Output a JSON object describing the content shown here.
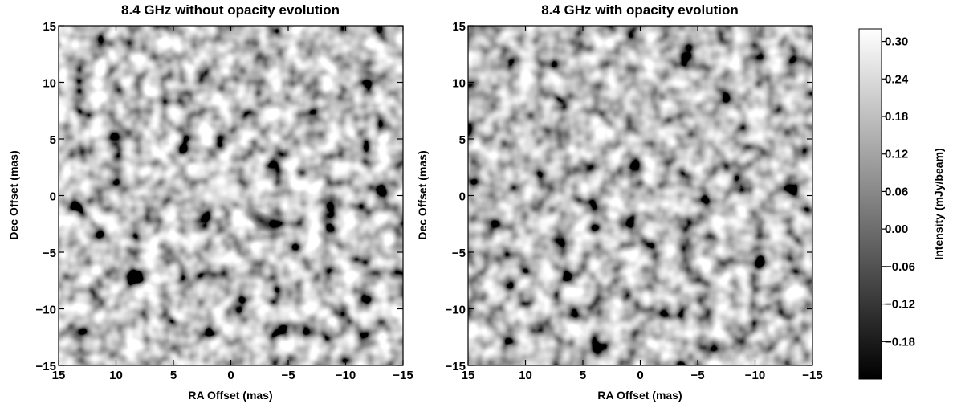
{
  "chart_data": [
    {
      "type": "heatmap",
      "title": "8.4 GHz without opacity evolution",
      "xlabel": "RA Offset (mas)",
      "ylabel": "Dec Offset (mas)",
      "xlim": [
        15,
        -15
      ],
      "ylim": [
        -15,
        15
      ],
      "xticks": [
        "15",
        "10",
        "5",
        "0",
        "−5",
        "−10",
        "−15"
      ],
      "yticks": [
        "−15",
        "−10",
        "−5",
        "0",
        "5",
        "10",
        "15"
      ],
      "colormap": "gray",
      "features": [
        {
          "x": 0.5,
          "y": 0.0,
          "intensity": 0.3,
          "kind": "bright compact source"
        },
        {
          "x": -1.5,
          "y": -2.0,
          "intensity": -0.18,
          "kind": "dark trough"
        }
      ]
    },
    {
      "type": "heatmap",
      "title": "8.4 GHz with opacity evolution",
      "xlabel": "RA Offset (mas)",
      "ylabel": "Dec Offset (mas)",
      "xlim": [
        15,
        -15
      ],
      "ylim": [
        -15,
        15
      ],
      "xticks": [
        "15",
        "10",
        "5",
        "0",
        "−5",
        "−10",
        "−15"
      ],
      "yticks": [
        "−15",
        "−10",
        "−5",
        "0",
        "5",
        "10",
        "15"
      ],
      "colormap": "gray",
      "features": []
    }
  ],
  "colorbar": {
    "label": "Intensity (mJy/beam)",
    "range": [
      -0.24,
      0.32
    ],
    "ticks": [
      {
        "value": 0.3,
        "label": "0.30"
      },
      {
        "value": 0.24,
        "label": "0.24"
      },
      {
        "value": 0.18,
        "label": "0.18"
      },
      {
        "value": 0.12,
        "label": "0.12"
      },
      {
        "value": 0.06,
        "label": "0.06"
      },
      {
        "value": 0.0,
        "label": "0.00"
      },
      {
        "value": -0.06,
        "label": "−0.06"
      },
      {
        "value": -0.12,
        "label": "−0.12"
      },
      {
        "value": -0.18,
        "label": "−0.18"
      }
    ]
  }
}
